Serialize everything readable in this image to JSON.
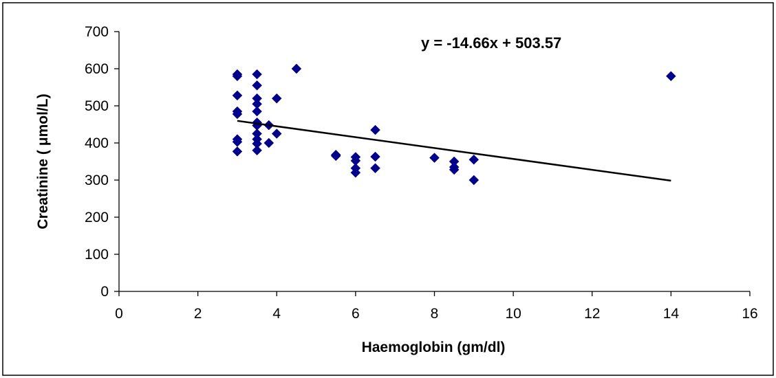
{
  "chart_data": {
    "type": "scatter",
    "xlabel": "Haemoglobin (gm/dl)",
    "ylabel": "Creatinine ( μmol/L)",
    "xlim": [
      0,
      16
    ],
    "ylim": [
      0,
      700
    ],
    "x_ticks": [
      "0",
      "2",
      "4",
      "6",
      "8",
      "10",
      "12",
      "14",
      "16"
    ],
    "y_ticks": [
      "0",
      "100",
      "200",
      "300",
      "400",
      "500",
      "600",
      "700"
    ],
    "grid": false,
    "legend": "none",
    "marker_color": "#00008B",
    "trendline": {
      "equation": "y = -14.66x + 503.57",
      "slope": -14.66,
      "intercept": 503.57,
      "x_range": [
        3,
        14
      ],
      "color": "#000000"
    },
    "points": [
      {
        "x": 3,
        "y": 585
      },
      {
        "x": 3,
        "y": 580
      },
      {
        "x": 3,
        "y": 528
      },
      {
        "x": 3,
        "y": 485
      },
      {
        "x": 3,
        "y": 478
      },
      {
        "x": 3,
        "y": 410
      },
      {
        "x": 3,
        "y": 403
      },
      {
        "x": 3,
        "y": 377
      },
      {
        "x": 3.5,
        "y": 585
      },
      {
        "x": 3.5,
        "y": 555
      },
      {
        "x": 3.5,
        "y": 520
      },
      {
        "x": 3.5,
        "y": 505
      },
      {
        "x": 3.5,
        "y": 485
      },
      {
        "x": 3.5,
        "y": 455
      },
      {
        "x": 3.5,
        "y": 447
      },
      {
        "x": 3.5,
        "y": 425
      },
      {
        "x": 3.5,
        "y": 410
      },
      {
        "x": 3.5,
        "y": 398
      },
      {
        "x": 3.5,
        "y": 380
      },
      {
        "x": 3.8,
        "y": 448
      },
      {
        "x": 3.8,
        "y": 400
      },
      {
        "x": 4,
        "y": 520
      },
      {
        "x": 4,
        "y": 425
      },
      {
        "x": 4.5,
        "y": 600
      },
      {
        "x": 5.5,
        "y": 368
      },
      {
        "x": 5.5,
        "y": 365
      },
      {
        "x": 6,
        "y": 362
      },
      {
        "x": 6,
        "y": 352
      },
      {
        "x": 6,
        "y": 332
      },
      {
        "x": 6,
        "y": 320
      },
      {
        "x": 6.5,
        "y": 435
      },
      {
        "x": 6.5,
        "y": 363
      },
      {
        "x": 6.5,
        "y": 332
      },
      {
        "x": 8,
        "y": 360
      },
      {
        "x": 8.5,
        "y": 350
      },
      {
        "x": 8.5,
        "y": 335
      },
      {
        "x": 8.5,
        "y": 328
      },
      {
        "x": 9,
        "y": 355
      },
      {
        "x": 9,
        "y": 300
      },
      {
        "x": 14,
        "y": 580
      }
    ]
  }
}
